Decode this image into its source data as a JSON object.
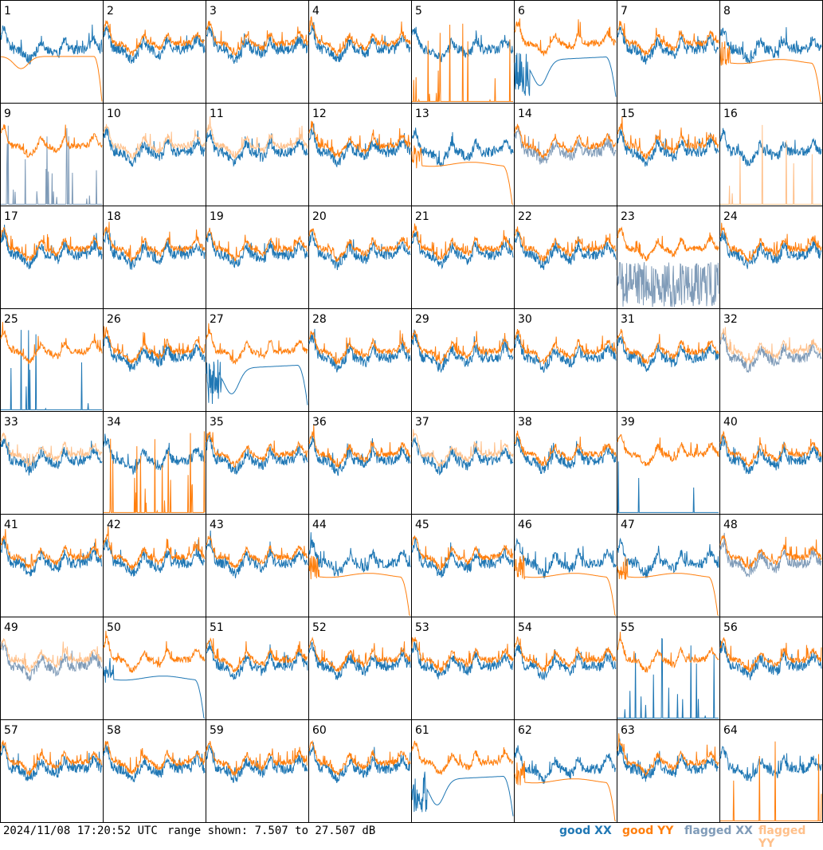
{
  "footer": {
    "timestamp": "2024/11/08 17:20:52 UTC",
    "range_text": "range shown: 7.507 to 27.507 dB"
  },
  "legend": [
    {
      "label": "good XX",
      "color": "#1f77b4"
    },
    {
      "label": "good YY",
      "color": "#ff7f0e"
    },
    {
      "label": "flagged XX",
      "color": "#7f9bb8"
    },
    {
      "label": "flagged YY",
      "color": "#ffc08a"
    }
  ],
  "chart_data": {
    "type": "line",
    "title": "",
    "ylim": [
      7.507,
      27.507
    ],
    "unit": "dB",
    "grid": "8x8 small multiples",
    "panels": [
      {
        "id": "1",
        "xx": "good",
        "yy": "good",
        "note": "YY smooth drop"
      },
      {
        "id": "2",
        "xx": "good",
        "yy": "good"
      },
      {
        "id": "3",
        "xx": "good",
        "yy": "good"
      },
      {
        "id": "4",
        "xx": "good",
        "yy": "good"
      },
      {
        "id": "5",
        "xx": "good",
        "yy": "good",
        "note": "YY near zero with spikes"
      },
      {
        "id": "6",
        "xx": "good",
        "yy": "good",
        "note": "XX smooth dip"
      },
      {
        "id": "7",
        "xx": "good",
        "yy": "good"
      },
      {
        "id": "8",
        "xx": "good",
        "yy": "good",
        "note": "YY flat then drop"
      },
      {
        "id": "9",
        "xx": "flagged",
        "yy": "good",
        "note": "XX spikes near zero"
      },
      {
        "id": "10",
        "xx": "good",
        "yy": "flagged"
      },
      {
        "id": "11",
        "xx": "good",
        "yy": "flagged"
      },
      {
        "id": "12",
        "xx": "good",
        "yy": "good"
      },
      {
        "id": "13",
        "xx": "good",
        "yy": "good",
        "note": "YY flat then drop"
      },
      {
        "id": "14",
        "xx": "flagged",
        "yy": "good"
      },
      {
        "id": "15",
        "xx": "good",
        "yy": "good"
      },
      {
        "id": "16",
        "xx": "good",
        "yy": "flagged",
        "note": "YY near zero"
      },
      {
        "id": "17",
        "xx": "good",
        "yy": "good"
      },
      {
        "id": "18",
        "xx": "good",
        "yy": "good"
      },
      {
        "id": "19",
        "xx": "good",
        "yy": "good"
      },
      {
        "id": "20",
        "xx": "good",
        "yy": "good"
      },
      {
        "id": "21",
        "xx": "good",
        "yy": "good"
      },
      {
        "id": "22",
        "xx": "good",
        "yy": "good"
      },
      {
        "id": "23",
        "xx": "flagged",
        "yy": "good",
        "note": "XX noisy low"
      },
      {
        "id": "24",
        "xx": "good",
        "yy": "good"
      },
      {
        "id": "25",
        "xx": "good",
        "yy": "good",
        "note": "XX near zero"
      },
      {
        "id": "26",
        "xx": "good",
        "yy": "good"
      },
      {
        "id": "27",
        "xx": "good",
        "yy": "good",
        "note": "XX smooth dip"
      },
      {
        "id": "28",
        "xx": "good",
        "yy": "good"
      },
      {
        "id": "29",
        "xx": "good",
        "yy": "good"
      },
      {
        "id": "30",
        "xx": "good",
        "yy": "good"
      },
      {
        "id": "31",
        "xx": "good",
        "yy": "good"
      },
      {
        "id": "32",
        "xx": "flagged",
        "yy": "flagged"
      },
      {
        "id": "33",
        "xx": "good",
        "yy": "flagged"
      },
      {
        "id": "34",
        "xx": "good",
        "yy": "good",
        "note": "YY near zero with spikes"
      },
      {
        "id": "35",
        "xx": "good",
        "yy": "good"
      },
      {
        "id": "36",
        "xx": "good",
        "yy": "good"
      },
      {
        "id": "37",
        "xx": "good",
        "yy": "flagged"
      },
      {
        "id": "38",
        "xx": "good",
        "yy": "good"
      },
      {
        "id": "39",
        "xx": "good",
        "yy": "good",
        "note": "XX near zero"
      },
      {
        "id": "40",
        "xx": "good",
        "yy": "good"
      },
      {
        "id": "41",
        "xx": "good",
        "yy": "good"
      },
      {
        "id": "42",
        "xx": "good",
        "yy": "good"
      },
      {
        "id": "43",
        "xx": "good",
        "yy": "good"
      },
      {
        "id": "44",
        "xx": "good",
        "yy": "good",
        "note": "YY flat then drop"
      },
      {
        "id": "45",
        "xx": "good",
        "yy": "good"
      },
      {
        "id": "46",
        "xx": "good",
        "yy": "good",
        "note": "YY flat then drop"
      },
      {
        "id": "47",
        "xx": "good",
        "yy": "good",
        "note": "YY flat then drop"
      },
      {
        "id": "48",
        "xx": "flagged",
        "yy": "good"
      },
      {
        "id": "49",
        "xx": "flagged",
        "yy": "flagged"
      },
      {
        "id": "50",
        "xx": "good",
        "yy": "good",
        "note": "XX flat then drop"
      },
      {
        "id": "51",
        "xx": "good",
        "yy": "good"
      },
      {
        "id": "52",
        "xx": "good",
        "yy": "good"
      },
      {
        "id": "53",
        "xx": "good",
        "yy": "good"
      },
      {
        "id": "54",
        "xx": "good",
        "yy": "good"
      },
      {
        "id": "55",
        "xx": "good",
        "yy": "good",
        "note": "XX spikes near zero"
      },
      {
        "id": "56",
        "xx": "good",
        "yy": "good"
      },
      {
        "id": "57",
        "xx": "good",
        "yy": "good"
      },
      {
        "id": "58",
        "xx": "good",
        "yy": "good"
      },
      {
        "id": "59",
        "xx": "good",
        "yy": "good"
      },
      {
        "id": "60",
        "xx": "good",
        "yy": "good"
      },
      {
        "id": "61",
        "xx": "good",
        "yy": "good",
        "note": "XX smooth dip"
      },
      {
        "id": "62",
        "xx": "good",
        "yy": "good",
        "note": "YY flat then drop"
      },
      {
        "id": "63",
        "xx": "good",
        "yy": "good"
      },
      {
        "id": "64",
        "xx": "good",
        "yy": "good",
        "note": "YY near zero"
      }
    ]
  }
}
